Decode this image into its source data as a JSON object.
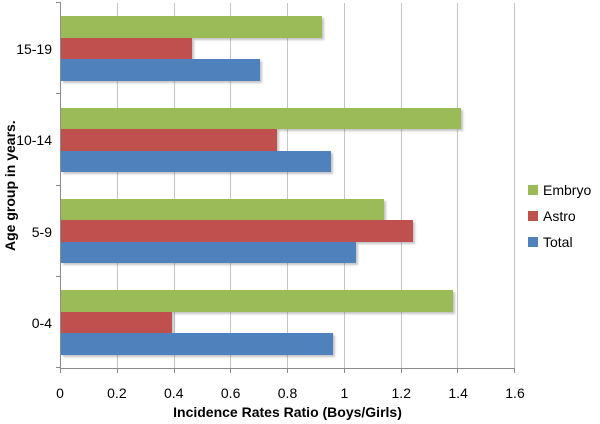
{
  "chart_data": {
    "type": "bar",
    "orientation": "horizontal",
    "title": "",
    "xlabel": "Incidence Rates Ratio (Boys/Girls)",
    "ylabel": "Age group in years.",
    "categories": [
      "15-19",
      "10-14",
      "5-9",
      "0-4"
    ],
    "series": [
      {
        "name": "Embryo",
        "color": "#9BBB59",
        "values": [
          0.92,
          1.41,
          1.14,
          1.38
        ]
      },
      {
        "name": "Astro",
        "color": "#C0504D",
        "values": [
          0.46,
          0.76,
          1.24,
          0.39
        ]
      },
      {
        "name": "Total",
        "color": "#4F81BD",
        "values": [
          0.7,
          0.95,
          1.04,
          0.96
        ]
      }
    ],
    "xlim": [
      0,
      1.6
    ],
    "xtick_labels": [
      "0",
      "0.2",
      "0.4",
      "0.6",
      "0.8",
      "1",
      "1.2",
      "1.4",
      "1.6"
    ],
    "grid": true,
    "legend_position": "right",
    "colors": {
      "gridline": "#C6C6C6",
      "axis": "#8C8C8C",
      "background": "#FFFFFF"
    }
  }
}
